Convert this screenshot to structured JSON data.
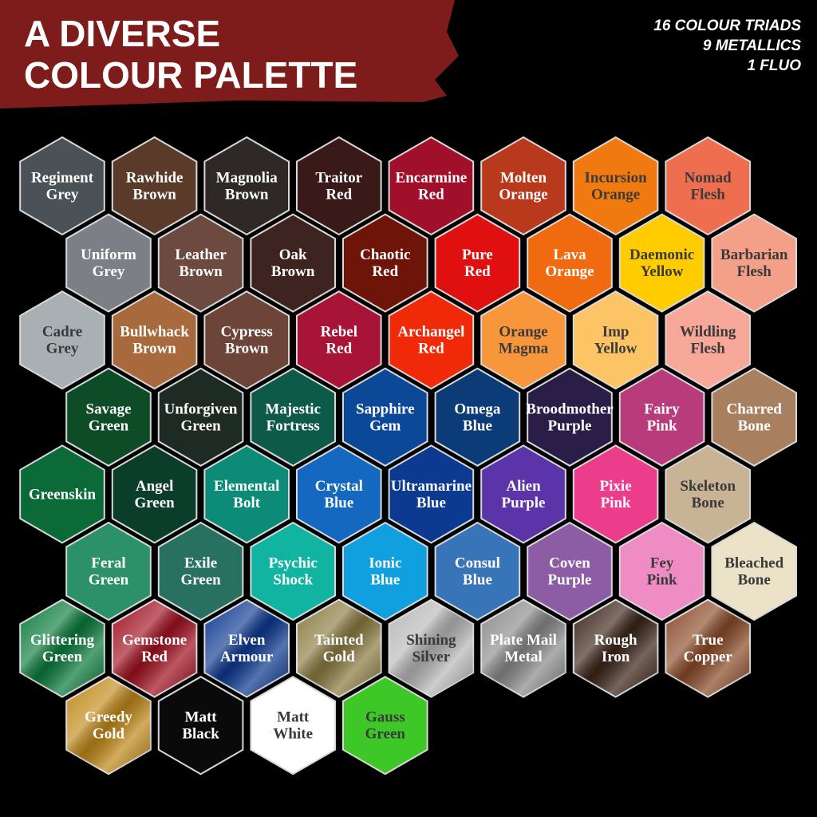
{
  "header": {
    "title": [
      "A DIVERSE",
      "COLOUR PALETTE"
    ],
    "summary": [
      "16 COLOUR TRIADS",
      "9 METALLICS",
      "1 FLUO"
    ]
  },
  "swatches": [
    [
      {
        "lines": [
          "Regiment",
          "Grey"
        ],
        "color": "#4a5257"
      },
      {
        "lines": [
          "Rawhide",
          "Brown"
        ],
        "color": "#5a3a28"
      },
      {
        "lines": [
          "Magnolia",
          "Brown"
        ],
        "color": "#2e2926"
      },
      {
        "lines": [
          "Traitor",
          "Red"
        ],
        "color": "#3a1a18"
      },
      {
        "lines": [
          "Encarmine",
          "Red"
        ],
        "color": "#a0102a"
      },
      {
        "lines": [
          "Molten",
          "Orange"
        ],
        "color": "#b8391c"
      },
      {
        "lines": [
          "Incursion",
          "Orange"
        ],
        "color": "#f07a10"
      },
      {
        "lines": [
          "Nomad",
          "Flesh"
        ],
        "color": "#ef6e50"
      }
    ],
    [
      {
        "lines": [
          "Uniform",
          "Grey"
        ],
        "color": "#7c8086"
      },
      {
        "lines": [
          "Leather",
          "Brown"
        ],
        "color": "#6c4a40"
      },
      {
        "lines": [
          "Oak",
          "Brown"
        ],
        "color": "#3e2420"
      },
      {
        "lines": [
          "Chaotic",
          "Red"
        ],
        "color": "#6e1408"
      },
      {
        "lines": [
          "Pure",
          "Red"
        ],
        "color": "#e01010"
      },
      {
        "lines": [
          "Lava",
          "Orange"
        ],
        "color": "#f06a10"
      },
      {
        "lines": [
          "Daemonic",
          "Yellow"
        ],
        "color": "#ffcc00"
      },
      {
        "lines": [
          "Barbarian",
          "Flesh"
        ],
        "color": "#f4a088"
      }
    ],
    [
      {
        "lines": [
          "Cadre",
          "Grey"
        ],
        "color": "#a8b0b4"
      },
      {
        "lines": [
          "Bullwhack",
          "Brown"
        ],
        "color": "#a86a3c"
      },
      {
        "lines": [
          "Cypress",
          "Brown"
        ],
        "color": "#6c4438"
      },
      {
        "lines": [
          "Rebel",
          "Red"
        ],
        "color": "#a81438"
      },
      {
        "lines": [
          "Archangel",
          "Red"
        ],
        "color": "#f02a08"
      },
      {
        "lines": [
          "Orange",
          "Magma"
        ],
        "color": "#f8963c"
      },
      {
        "lines": [
          "Imp",
          "Yellow"
        ],
        "color": "#fcc464"
      },
      {
        "lines": [
          "Wildling",
          "Flesh"
        ],
        "color": "#f8a898"
      }
    ],
    [
      {
        "lines": [
          "Savage",
          "Green"
        ],
        "color": "#0e4c28"
      },
      {
        "lines": [
          "Unforgiven",
          "Green"
        ],
        "color": "#1e2a24"
      },
      {
        "lines": [
          "Majestic",
          "Fortress"
        ],
        "color": "#0e5a48"
      },
      {
        "lines": [
          "Sapphire",
          "Gem"
        ],
        "color": "#0c4898"
      },
      {
        "lines": [
          "Omega",
          "Blue"
        ],
        "color": "#0c3c78"
      },
      {
        "lines": [
          "Broodmother",
          "Purple"
        ],
        "color": "#2a1e48"
      },
      {
        "lines": [
          "Fairy",
          "Pink"
        ],
        "color": "#b83c7c"
      },
      {
        "lines": [
          "Charred",
          "Bone"
        ],
        "color": "#a88060"
      }
    ],
    [
      {
        "lines": [
          "Greenskin"
        ],
        "color": "#0c6a38"
      },
      {
        "lines": [
          "Angel",
          "Green"
        ],
        "color": "#0a3e2a"
      },
      {
        "lines": [
          "Elemental",
          "Bolt"
        ],
        "color": "#0c8c78"
      },
      {
        "lines": [
          "Crystal",
          "Blue"
        ],
        "color": "#1468c0"
      },
      {
        "lines": [
          "Ultramarine",
          "Blue"
        ],
        "color": "#0c3a90"
      },
      {
        "lines": [
          "Alien",
          "Purple"
        ],
        "color": "#5a34a8"
      },
      {
        "lines": [
          "Pixie",
          "Pink"
        ],
        "color": "#ec3c8c"
      },
      {
        "lines": [
          "Skeleton",
          "Bone"
        ],
        "color": "#c8b494"
      }
    ],
    [
      {
        "lines": [
          "Feral",
          "Green"
        ],
        "color": "#2c9068"
      },
      {
        "lines": [
          "Exile",
          "Green"
        ],
        "color": "#287060"
      },
      {
        "lines": [
          "Psychic",
          "Shock"
        ],
        "color": "#10b4a0"
      },
      {
        "lines": [
          "Ionic",
          "Blue"
        ],
        "color": "#10a0e0"
      },
      {
        "lines": [
          "Consul",
          "Blue"
        ],
        "color": "#3874b8"
      },
      {
        "lines": [
          "Coven",
          "Purple"
        ],
        "color": "#8c5ca4"
      },
      {
        "lines": [
          "Fey",
          "Pink"
        ],
        "color": "#f08cc4"
      },
      {
        "lines": [
          "Bleached",
          "Bone"
        ],
        "color": "#ece2c8"
      }
    ],
    [
      {
        "lines": [
          "Glittering",
          "Green"
        ],
        "color": "#0a7a3c"
      },
      {
        "lines": [
          "Gemstone",
          "Red"
        ],
        "color": "#a01020"
      },
      {
        "lines": [
          "Elven",
          "Armour"
        ],
        "color": "#0c3890"
      },
      {
        "lines": [
          "Tainted",
          "Gold"
        ],
        "color": "#8a7a40"
      },
      {
        "lines": [
          "Shining",
          "Silver"
        ],
        "color": "#b8b8b8"
      },
      {
        "lines": [
          "Plate Mail",
          "Metal"
        ],
        "color": "#8a8a8a"
      },
      {
        "lines": [
          "Rough",
          "Iron"
        ],
        "color": "#3a2418"
      },
      {
        "lines": [
          "True",
          "Copper"
        ],
        "color": "#8a4a28"
      }
    ],
    [
      {
        "lines": [
          "Greedy",
          "Gold"
        ],
        "color": "#c08818"
      },
      {
        "lines": [
          "Matt",
          "Black"
        ],
        "color": "#0a0a0a"
      },
      {
        "lines": [
          "Matt",
          "White"
        ],
        "color": "#ffffff"
      },
      {
        "lines": [
          "Gauss",
          "Green"
        ],
        "color": "#3ec828"
      }
    ]
  ]
}
